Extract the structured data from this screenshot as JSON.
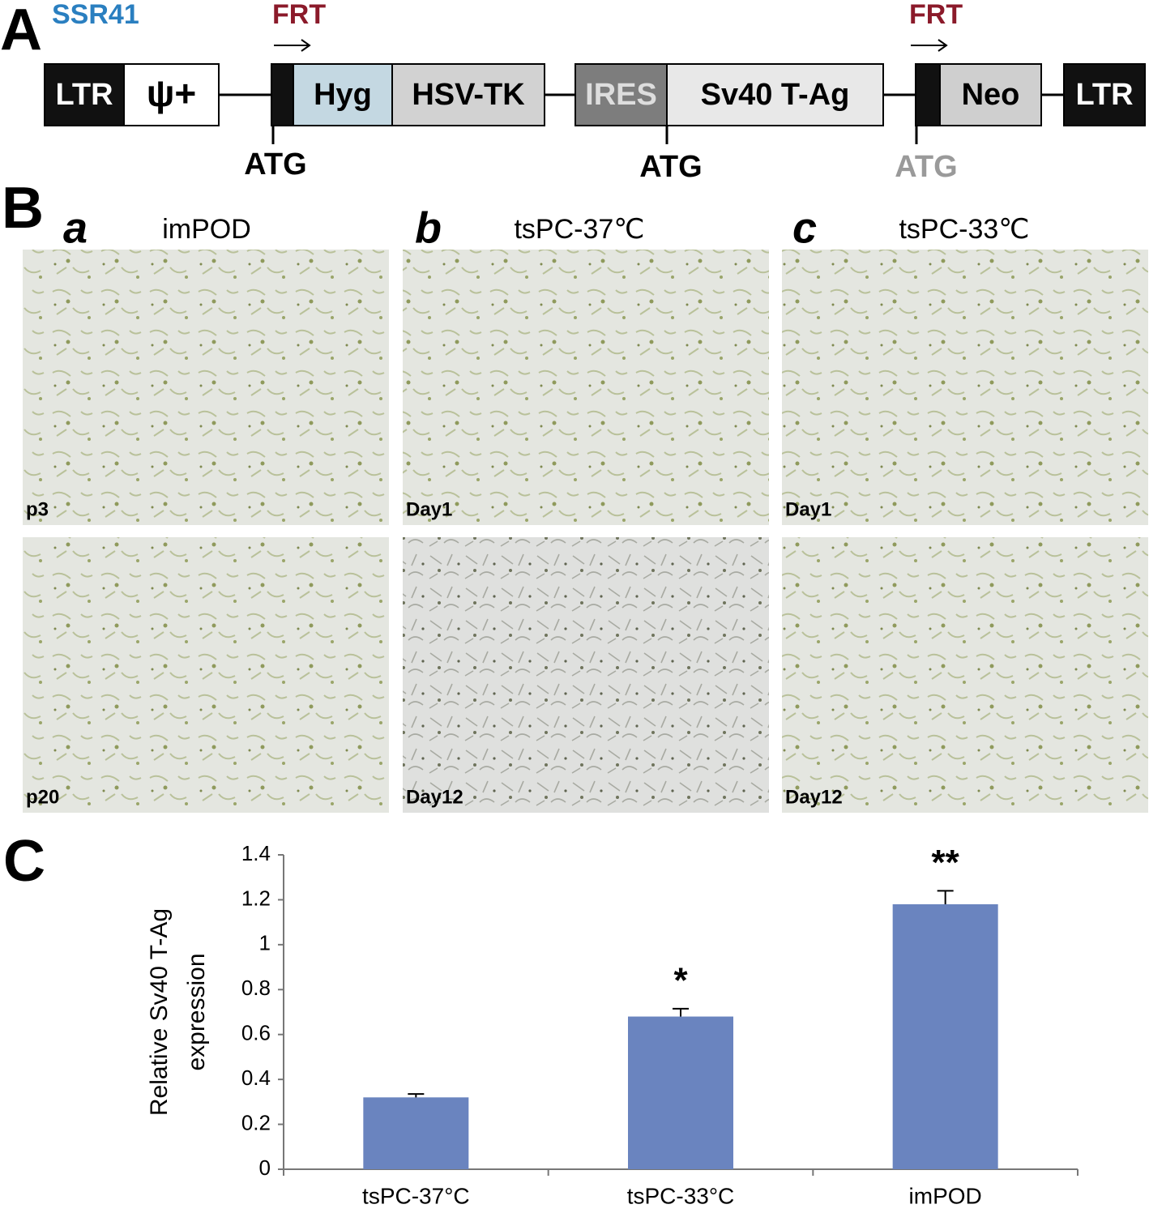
{
  "panel_a": {
    "letter": "A",
    "construct": "SSR41",
    "frt": [
      "FRT",
      "FRT"
    ],
    "elements": [
      "LTR",
      "ψ+",
      "Hyg",
      "HSV-TK",
      "IRES",
      "Sv40 T-Ag",
      "Neo",
      "LTR"
    ],
    "atg": [
      "ATG",
      "ATG",
      "ATG"
    ]
  },
  "panel_b": {
    "letter": "B",
    "columns": [
      {
        "letter": "a",
        "title": "imPOD",
        "images": [
          "p3",
          "p20"
        ]
      },
      {
        "letter": "b",
        "title": "tsPC-37℃",
        "images": [
          "Day1",
          "Day12"
        ]
      },
      {
        "letter": "c",
        "title": "tsPC-33℃",
        "images": [
          "Day1",
          "Day12"
        ]
      }
    ]
  },
  "panel_c": {
    "letter": "C"
  },
  "chart_data": {
    "type": "bar",
    "y_label": [
      "Relative Sv40 T-Ag",
      "expression"
    ],
    "categories": [
      "tsPC-37°C",
      "tsPC-33°C",
      "imPOD"
    ],
    "values": [
      0.32,
      0.68,
      1.18
    ],
    "errors": [
      0.015,
      0.035,
      0.06
    ],
    "significance": [
      null,
      "*",
      "**"
    ],
    "color": "#6a84bf",
    "ylim": [
      0,
      1.4
    ],
    "yticks": [
      0,
      0.2,
      0.4,
      0.6,
      0.8,
      1,
      1.2,
      1.4
    ],
    "grid": false
  }
}
